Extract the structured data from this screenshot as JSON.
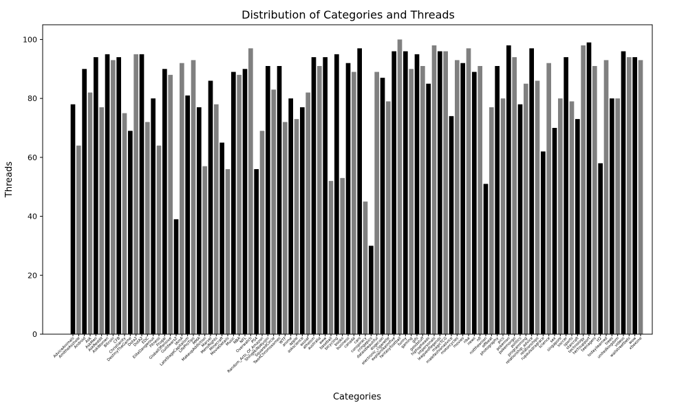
{
  "chart_data": {
    "type": "bar",
    "title": "Distribution of Categories and Threads",
    "xlabel": "Categories",
    "ylabel": "Threads",
    "ylim": [
      0,
      105
    ],
    "yticks": [
      0,
      20,
      40,
      60,
      80,
      100
    ],
    "grid": false,
    "legend": "none",
    "bar_colors": [
      "#000000",
      "#808080"
    ],
    "categories": [
      "AdviceAnimals",
      "AmItheAsshole",
      "Android",
      "Ask",
      "AskMen",
      "AskReddit",
      "AskWomen",
      "Bitcoin",
      "CFB",
      "Christianity",
      "DestinyTheGame",
      "Dota2",
      "DotA2",
      "EDC",
      "EliteDangerous",
      "Fitness",
      "Frugal",
      "GlobalOffensive",
      "Guildwars2",
      "IAmA",
      "LateStageCapitalism",
      "LifeProTips",
      "MMA",
      "MakeupAddiction",
      "Marvel",
      "MensRights",
      "Minecraft",
      "MovieDetails",
      "Music",
      "NBA",
      "NFL",
      "Overwatch",
      "PS4",
      "Random_Acts_Of_Amazon",
      "ShingekiNoKyojin",
      "SquaredCircle",
      "TwoXChromosomes",
      "WTF",
      "anime",
      "apple",
      "askscience",
      "asoiaf",
      "atheism",
      "australia",
      "aww",
      "baseball",
      "bicycling",
      "books",
      "business",
      "canada",
      "cars",
      "conspiracy",
      "cringepics",
      "dataisbeautiful",
      "dogecoin",
      "electronic_cigarette",
      "explainlikeimfive",
      "fantasyfootball",
      "funny",
      "gaming",
      "gifs",
      "goodstuff",
      "hiphopheads",
      "intpersonals",
      "leagueoflegends",
      "magicTCG",
      "malefashionadvice",
      "motorcycles",
      "movies",
      "nba",
      "news",
      "nfl",
      "nottheonion",
      "offbeat",
      "photography",
      "pics",
      "pokemon",
      "pokemongo",
      "politics",
      "programming",
      "relationship_advice",
      "relationships",
      "rupaulsdragrace",
      "science",
      "sex",
      "singapore",
      "soccer",
      "sports",
      "starcraft",
      "technology",
      "techsupport",
      "teenagers",
      "tf2",
      "todayilearned",
      "trees",
      "unitedkingdom",
      "videos",
      "wallstreetbets",
      "wow",
      "xboxone"
    ],
    "values": [
      78,
      64,
      90,
      82,
      94,
      77,
      95,
      93,
      94,
      75,
      69,
      95,
      95,
      72,
      80,
      64,
      90,
      88,
      39,
      92,
      81,
      93,
      77,
      57,
      86,
      78,
      65,
      56,
      89,
      88,
      90,
      97,
      56,
      69,
      91,
      83,
      91,
      72,
      80,
      73,
      77,
      82,
      94,
      91,
      94,
      52,
      95,
      53,
      92,
      89,
      97,
      45,
      30,
      89,
      87,
      79,
      96,
      100,
      96,
      90,
      95,
      91,
      85,
      98,
      96,
      96,
      74,
      93,
      92,
      97,
      89,
      91,
      51,
      77,
      91,
      80,
      98,
      94,
      78,
      85,
      97,
      86,
      62,
      92,
      70,
      80,
      94,
      79,
      73,
      98,
      99,
      91,
      58,
      93,
      80,
      80,
      96,
      94,
      94,
      93
    ]
  }
}
